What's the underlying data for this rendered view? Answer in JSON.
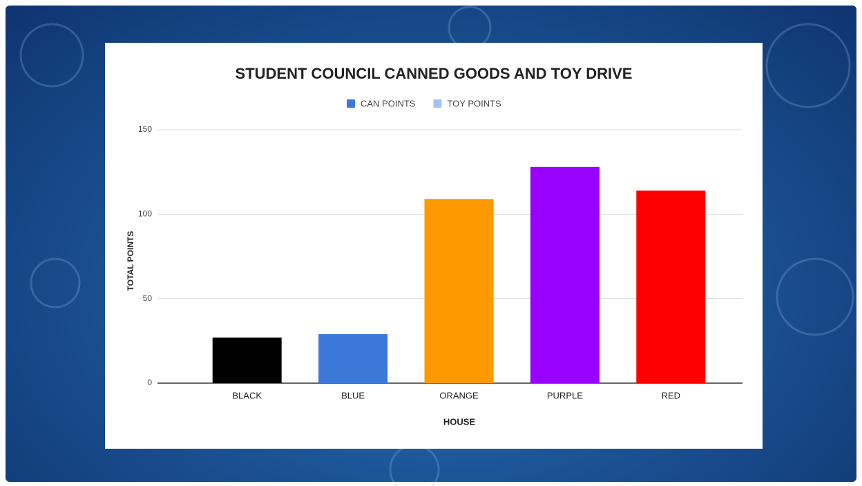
{
  "chart_data": {
    "type": "bar",
    "title": "STUDENT COUNCIL CANNED GOODS AND TOY DRIVE",
    "x_label": "HOUSE",
    "y_label": "TOTAL POINTS",
    "categories": [
      "BLACK",
      "BLUE",
      "ORANGE",
      "PURPLE",
      "RED"
    ],
    "series": [
      {
        "name": "CAN POINTS",
        "color": "#3c78d8",
        "values": [
          27,
          29,
          109,
          128,
          114
        ],
        "bar_colors": [
          "#000000",
          "#3c78d8",
          "#ff9900",
          "#9900ff",
          "#ff0000"
        ]
      },
      {
        "name": "TOY POINTS",
        "color": "#a4c2f4",
        "values": [
          0,
          0,
          0,
          0,
          0
        ]
      }
    ],
    "stacked": true,
    "ylim": [
      0,
      150
    ],
    "yticks": [
      0,
      50,
      100,
      150
    ],
    "grid": true,
    "legend": "top"
  }
}
